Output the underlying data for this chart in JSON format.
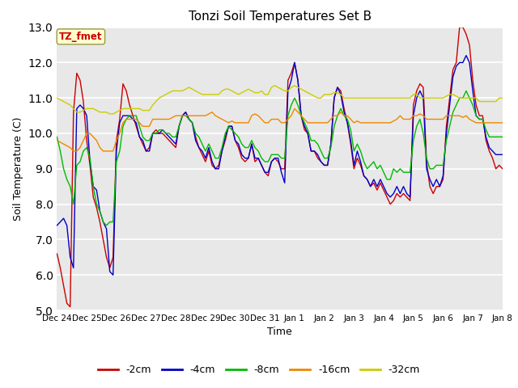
{
  "title": "Tonzi Soil Temperatures Set B",
  "xlabel": "Time",
  "ylabel": "Soil Temperature (C)",
  "ylim": [
    5.0,
    13.0
  ],
  "yticks": [
    5.0,
    6.0,
    7.0,
    8.0,
    9.0,
    10.0,
    11.0,
    12.0,
    13.0
  ],
  "colors": {
    "-2cm": "#cc0000",
    "-4cm": "#0000cc",
    "-8cm": "#00bb00",
    "-16cm": "#ee8800",
    "-32cm": "#cccc00"
  },
  "legend_label": "TZ_fmet",
  "legend_box_facecolor": "#ffffcc",
  "legend_box_edgecolor": "#999944",
  "legend_text_color": "#cc0000",
  "bg_color": "#e0e0e0",
  "plot_bg_color": "#e8e8e8",
  "fig_bg_color": "#ffffff",
  "day_labels": [
    "Dec 24",
    "Dec 25",
    "Dec 26",
    "Dec 27",
    "Dec 28",
    "Dec 29",
    "Dec 30",
    "Dec 31",
    "Jan 1",
    "Jan 2",
    "Jan 3",
    "Jan 4",
    "Jan 5",
    "Jan 6",
    "Jan 7",
    "Jan 8"
  ],
  "series_2cm": [
    6.6,
    6.2,
    5.7,
    5.2,
    5.1,
    10.6,
    11.7,
    11.5,
    10.9,
    9.8,
    9.1,
    8.2,
    7.9,
    7.5,
    7.0,
    6.5,
    6.2,
    6.5,
    9.8,
    10.4,
    11.4,
    11.2,
    10.8,
    10.5,
    10.2,
    9.9,
    9.7,
    9.5,
    9.6,
    10.0,
    10.1,
    10.0,
    10.0,
    9.9,
    9.8,
    9.7,
    9.6,
    10.2,
    10.5,
    10.6,
    10.4,
    10.3,
    9.9,
    9.6,
    9.4,
    9.2,
    9.5,
    9.1,
    9.0,
    9.1,
    9.5,
    9.8,
    10.2,
    10.2,
    9.8,
    9.6,
    9.3,
    9.2,
    9.3,
    9.7,
    9.2,
    9.3,
    9.1,
    8.9,
    8.8,
    9.2,
    9.3,
    9.2,
    9.0,
    9.0,
    11.5,
    11.7,
    12.0,
    11.5,
    10.5,
    10.1,
    10.0,
    9.5,
    9.5,
    9.3,
    9.2,
    9.1,
    9.1,
    9.7,
    11.0,
    11.3,
    11.2,
    10.7,
    10.3,
    9.7,
    9.0,
    9.3,
    9.1,
    8.8,
    8.7,
    8.5,
    8.6,
    8.4,
    8.6,
    8.4,
    8.2,
    8.0,
    8.1,
    8.3,
    8.2,
    8.3,
    8.2,
    8.1,
    10.8,
    11.2,
    11.4,
    11.3,
    9.2,
    8.5,
    8.3,
    8.5,
    8.5,
    8.7,
    10.2,
    11.0,
    11.8,
    12.0,
    13.0,
    13.0,
    12.8,
    12.5,
    11.5,
    10.8,
    10.5,
    10.5,
    9.8,
    9.5,
    9.3,
    9.0,
    9.1,
    9.0
  ],
  "series_4cm": [
    7.4,
    7.5,
    7.6,
    7.4,
    6.5,
    6.2,
    10.7,
    10.8,
    10.7,
    10.5,
    9.2,
    8.5,
    8.4,
    7.8,
    7.5,
    7.3,
    6.1,
    6.0,
    9.5,
    10.3,
    10.5,
    10.5,
    10.5,
    10.4,
    10.3,
    9.9,
    9.8,
    9.5,
    9.5,
    10.0,
    10.0,
    10.0,
    10.1,
    10.0,
    9.9,
    9.8,
    9.7,
    10.2,
    10.5,
    10.6,
    10.4,
    10.3,
    9.8,
    9.6,
    9.5,
    9.3,
    9.6,
    9.2,
    9.0,
    9.0,
    9.5,
    9.9,
    10.2,
    10.2,
    9.8,
    9.7,
    9.4,
    9.3,
    9.3,
    9.7,
    9.3,
    9.3,
    9.1,
    8.9,
    8.9,
    9.2,
    9.3,
    9.3,
    8.9,
    8.6,
    11.2,
    11.5,
    12.0,
    11.5,
    10.5,
    10.2,
    10.0,
    9.5,
    9.5,
    9.4,
    9.2,
    9.1,
    9.1,
    9.7,
    11.0,
    11.3,
    11.1,
    10.6,
    10.3,
    9.8,
    9.1,
    9.5,
    9.2,
    8.8,
    8.7,
    8.5,
    8.7,
    8.5,
    8.7,
    8.5,
    8.3,
    8.2,
    8.3,
    8.5,
    8.3,
    8.5,
    8.3,
    8.2,
    10.5,
    11.0,
    11.2,
    11.0,
    9.0,
    8.7,
    8.5,
    8.7,
    8.5,
    8.8,
    10.0,
    10.8,
    11.6,
    11.9,
    12.0,
    12.0,
    12.2,
    12.0,
    11.2,
    10.5,
    10.4,
    10.4,
    9.9,
    9.6,
    9.5,
    9.4,
    9.4,
    9.4
  ],
  "series_8cm": [
    9.9,
    9.5,
    9.0,
    8.7,
    8.5,
    8.0,
    9.1,
    9.2,
    9.5,
    9.6,
    9.3,
    8.5,
    8.0,
    7.8,
    7.5,
    7.4,
    7.5,
    7.5,
    9.2,
    9.5,
    10.2,
    10.4,
    10.5,
    10.5,
    10.5,
    10.2,
    9.9,
    9.8,
    9.8,
    10.0,
    10.0,
    10.1,
    10.1,
    10.0,
    10.0,
    9.9,
    9.9,
    10.2,
    10.5,
    10.5,
    10.4,
    10.3,
    10.0,
    9.9,
    9.7,
    9.5,
    9.7,
    9.5,
    9.3,
    9.3,
    9.6,
    10.0,
    10.2,
    10.1,
    10.0,
    9.9,
    9.7,
    9.6,
    9.6,
    9.8,
    9.6,
    9.5,
    9.3,
    9.2,
    9.2,
    9.4,
    9.4,
    9.4,
    9.3,
    9.3,
    10.5,
    10.8,
    11.0,
    10.8,
    10.5,
    10.3,
    10.1,
    9.8,
    9.8,
    9.7,
    9.5,
    9.3,
    9.3,
    9.6,
    10.2,
    10.5,
    10.7,
    10.5,
    10.4,
    10.1,
    9.5,
    9.7,
    9.5,
    9.2,
    9.0,
    9.1,
    9.2,
    9.0,
    9.1,
    8.9,
    8.7,
    8.7,
    9.0,
    8.9,
    9.0,
    8.9,
    8.9,
    8.9,
    9.8,
    10.2,
    10.4,
    10.0,
    9.3,
    9.0,
    9.0,
    9.1,
    9.1,
    9.1,
    9.8,
    10.2,
    10.6,
    10.8,
    11.0,
    11.0,
    11.2,
    11.0,
    10.8,
    10.5,
    10.4,
    10.4,
    10.1,
    9.9,
    9.9,
    9.9,
    9.9,
    9.9
  ],
  "series_16cm": [
    9.8,
    9.75,
    9.7,
    9.65,
    9.6,
    9.5,
    9.5,
    9.6,
    9.8,
    10.0,
    10.0,
    9.9,
    9.8,
    9.6,
    9.5,
    9.5,
    9.5,
    9.5,
    9.8,
    10.0,
    10.3,
    10.4,
    10.4,
    10.4,
    10.4,
    10.3,
    10.2,
    10.2,
    10.2,
    10.4,
    10.4,
    10.4,
    10.4,
    10.4,
    10.4,
    10.45,
    10.5,
    10.5,
    10.5,
    10.5,
    10.5,
    10.5,
    10.5,
    10.5,
    10.5,
    10.5,
    10.55,
    10.6,
    10.5,
    10.45,
    10.4,
    10.35,
    10.3,
    10.35,
    10.3,
    10.3,
    10.3,
    10.3,
    10.3,
    10.5,
    10.55,
    10.5,
    10.4,
    10.3,
    10.3,
    10.4,
    10.4,
    10.4,
    10.3,
    10.3,
    10.4,
    10.5,
    10.7,
    10.6,
    10.5,
    10.4,
    10.3,
    10.3,
    10.3,
    10.3,
    10.3,
    10.3,
    10.3,
    10.4,
    10.5,
    10.5,
    10.6,
    10.5,
    10.5,
    10.4,
    10.3,
    10.35,
    10.3,
    10.3,
    10.3,
    10.3,
    10.3,
    10.3,
    10.3,
    10.3,
    10.3,
    10.3,
    10.35,
    10.4,
    10.5,
    10.4,
    10.4,
    10.4,
    10.5,
    10.5,
    10.55,
    10.5,
    10.4,
    10.4,
    10.4,
    10.4,
    10.4,
    10.4,
    10.5,
    10.5,
    10.5,
    10.5,
    10.5,
    10.45,
    10.5,
    10.4,
    10.35,
    10.3,
    10.3,
    10.3,
    10.3,
    10.3,
    10.3,
    10.3,
    10.3,
    10.3
  ],
  "series_32cm": [
    11.0,
    10.95,
    10.9,
    10.85,
    10.8,
    10.7,
    10.6,
    10.6,
    10.65,
    10.7,
    10.7,
    10.7,
    10.65,
    10.6,
    10.6,
    10.6,
    10.55,
    10.55,
    10.6,
    10.65,
    10.7,
    10.7,
    10.7,
    10.7,
    10.7,
    10.7,
    10.65,
    10.65,
    10.65,
    10.8,
    10.9,
    11.0,
    11.05,
    11.1,
    11.15,
    11.2,
    11.2,
    11.2,
    11.2,
    11.25,
    11.3,
    11.25,
    11.2,
    11.15,
    11.1,
    11.1,
    11.1,
    11.1,
    11.1,
    11.1,
    11.2,
    11.25,
    11.25,
    11.2,
    11.15,
    11.1,
    11.15,
    11.2,
    11.25,
    11.2,
    11.15,
    11.15,
    11.2,
    11.1,
    11.1,
    11.3,
    11.35,
    11.3,
    11.25,
    11.2,
    11.2,
    11.3,
    11.35,
    11.3,
    11.25,
    11.2,
    11.15,
    11.1,
    11.05,
    11.0,
    11.0,
    11.1,
    11.1,
    11.1,
    11.15,
    11.15,
    11.1,
    11.0,
    11.0,
    11.0,
    11.0,
    11.0,
    11.0,
    11.0,
    11.0,
    11.0,
    11.0,
    11.0,
    11.0,
    11.0,
    11.0,
    11.0,
    11.0,
    11.0,
    11.0,
    11.0,
    11.0,
    11.0,
    11.1,
    11.1,
    11.0,
    11.0,
    11.0,
    11.0,
    11.0,
    11.0,
    11.0,
    11.0,
    11.05,
    11.1,
    11.1,
    11.05,
    11.0,
    11.0,
    11.0,
    11.0,
    11.0,
    11.0,
    10.9,
    10.9,
    10.9,
    10.9,
    10.9,
    10.9,
    11.0,
    11.0
  ]
}
